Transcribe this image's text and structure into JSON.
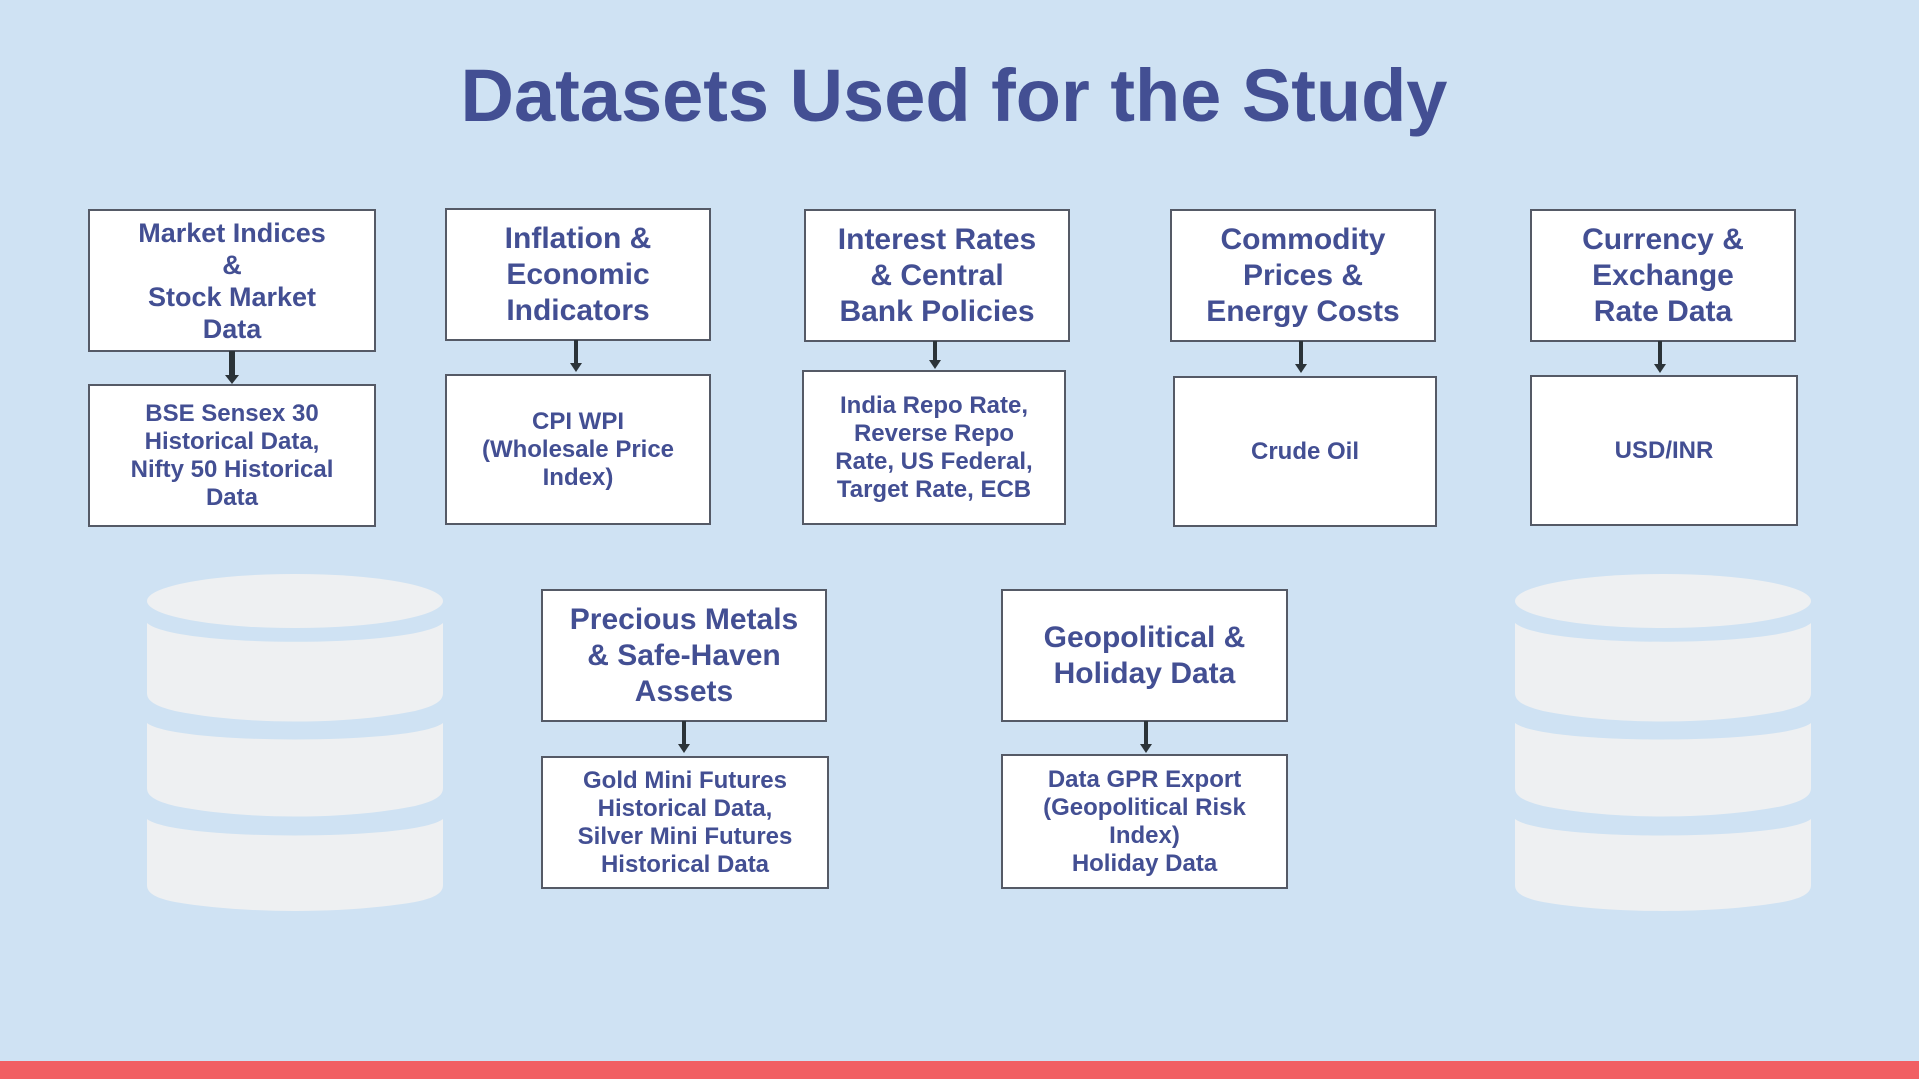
{
  "title": "Datasets Used for the Study",
  "colors": {
    "background": "#cfe2f3",
    "title_text": "#434f93",
    "box_fill": "#ffffff",
    "box_border": "#555a66",
    "connector": "#2b3338",
    "database_icon": "#eef0f2",
    "footer_bar": "#f15f63"
  },
  "categories": [
    {
      "heading": "Market Indices\n&\nStock Market\nData",
      "datasets": "BSE Sensex 30\nHistorical Data,\nNifty 50 Historical\nData"
    },
    {
      "heading": "Inflation &\nEconomic\nIndicators",
      "datasets": "CPI WPI\n(Wholesale Price\nIndex)"
    },
    {
      "heading": "Interest Rates\n& Central\nBank Policies",
      "datasets": "India Repo Rate,\nReverse Repo\nRate, US Federal,\nTarget Rate, ECB"
    },
    {
      "heading": "Commodity\nPrices &\nEnergy Costs",
      "datasets": "Crude Oil"
    },
    {
      "heading": "Currency &\nExchange\nRate Data",
      "datasets": "USD/INR"
    },
    {
      "heading": "Precious Metals\n& Safe-Haven\nAssets",
      "datasets": "Gold Mini Futures\nHistorical Data,\nSilver Mini Futures\nHistorical Data"
    },
    {
      "heading": "Geopolitical &\nHoliday Data",
      "datasets": "Data GPR Export\n(Geopolitical Risk\nIndex)\nHoliday Data"
    }
  ],
  "icons": [
    "database-icon",
    "arrow-down-icon"
  ]
}
